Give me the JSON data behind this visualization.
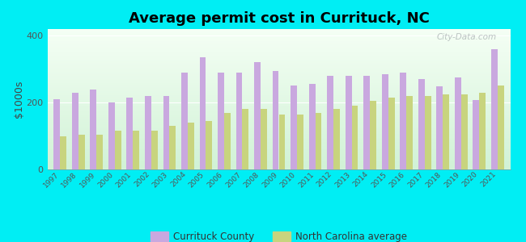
{
  "title": "Average permit cost in Currituck, NC",
  "ylabel": "$1000s",
  "years": [
    1997,
    1998,
    1999,
    2000,
    2001,
    2002,
    2003,
    2004,
    2005,
    2006,
    2007,
    2008,
    2009,
    2010,
    2011,
    2012,
    2013,
    2014,
    2015,
    2016,
    2017,
    2018,
    2019,
    2020,
    2021
  ],
  "currituck": [
    210,
    230,
    240,
    200,
    215,
    220,
    220,
    290,
    335,
    290,
    290,
    320,
    295,
    250,
    255,
    280,
    280,
    280,
    285,
    290,
    270,
    248,
    275,
    208,
    360
  ],
  "nc_avg": [
    100,
    105,
    105,
    115,
    115,
    115,
    130,
    140,
    145,
    170,
    180,
    180,
    165,
    165,
    168,
    180,
    190,
    205,
    215,
    220,
    220,
    225,
    225,
    230,
    250
  ],
  "currituck_color": "#c9a8df",
  "nc_avg_color": "#c8d47e",
  "background_color": "#00eef4",
  "ylim": [
    0,
    420
  ],
  "yticks": [
    0,
    200,
    400
  ],
  "bar_width": 0.35,
  "title_fontsize": 13,
  "legend_label_currituck": "Currituck County",
  "legend_label_nc": "North Carolina average"
}
